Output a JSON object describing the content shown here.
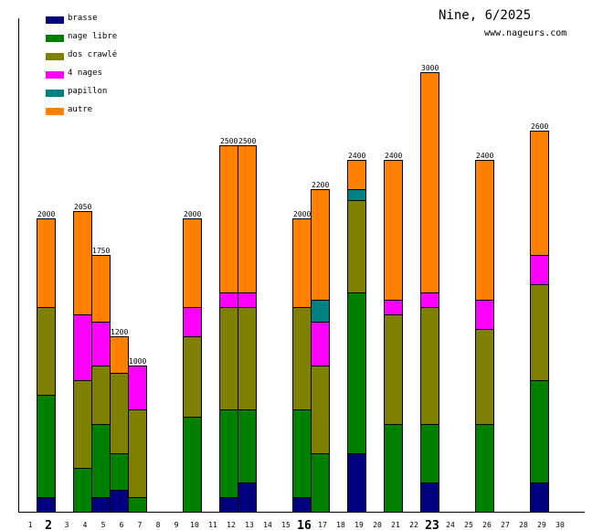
{
  "header": {
    "title": "Nine, 6/2025",
    "site": "www.nageurs.com"
  },
  "chart_data": {
    "type": "bar",
    "stacked": true,
    "title": "Nine, 6/2025",
    "subtitle": "www.nageurs.com",
    "xlabel": "",
    "ylabel": "",
    "ylim": [
      0,
      3000
    ],
    "grid": false,
    "legend_position": "top-left",
    "x_ticks": [
      "1",
      "2",
      "3",
      "4",
      "5",
      "6",
      "7",
      "8",
      "9",
      "10",
      "11",
      "12",
      "13",
      "14",
      "15",
      "16",
      "17",
      "18",
      "19",
      "20",
      "21",
      "22",
      "23",
      "24",
      "25",
      "26",
      "27",
      "28",
      "29",
      "30"
    ],
    "bold_ticks": [
      "2",
      "16",
      "23"
    ],
    "series": [
      {
        "name": "brasse",
        "color": "#000080"
      },
      {
        "name": "nage libre",
        "color": "#008000"
      },
      {
        "name": "dos crawlé",
        "color": "#808000"
      },
      {
        "name": "4 nages",
        "color": "#ff00ff"
      },
      {
        "name": "papillon",
        "color": "#008080"
      },
      {
        "name": "autre",
        "color": "#ff8000"
      }
    ],
    "days": [
      {
        "day": 2,
        "total": 2000,
        "values": {
          "brasse": 100,
          "nage libre": 700,
          "dos crawlé": 600,
          "4 nages": 0,
          "papillon": 0,
          "autre": 600
        }
      },
      {
        "day": 4,
        "total": 2050,
        "values": {
          "brasse": 0,
          "nage libre": 300,
          "dos crawlé": 600,
          "4 nages": 450,
          "papillon": 0,
          "autre": 700
        }
      },
      {
        "day": 5,
        "total": 1750,
        "values": {
          "brasse": 100,
          "nage libre": 500,
          "dos crawlé": 400,
          "4 nages": 300,
          "papillon": 0,
          "autre": 450
        }
      },
      {
        "day": 6,
        "total": 1200,
        "values": {
          "brasse": 150,
          "nage libre": 250,
          "dos crawlé": 550,
          "4 nages": 0,
          "papillon": 0,
          "autre": 250
        }
      },
      {
        "day": 7,
        "total": 1000,
        "values": {
          "brasse": 0,
          "nage libre": 100,
          "dos crawlé": 600,
          "4 nages": 300,
          "papillon": 0,
          "autre": 0
        }
      },
      {
        "day": 10,
        "total": 2000,
        "values": {
          "brasse": 0,
          "nage libre": 650,
          "dos crawlé": 550,
          "4 nages": 200,
          "papillon": 0,
          "autre": 600
        }
      },
      {
        "day": 12,
        "total": 2500,
        "values": {
          "brasse": 100,
          "nage libre": 600,
          "dos crawlé": 700,
          "4 nages": 100,
          "papillon": 0,
          "autre": 1000
        }
      },
      {
        "day": 13,
        "total": 2500,
        "values": {
          "brasse": 200,
          "nage libre": 500,
          "dos crawlé": 700,
          "4 nages": 100,
          "papillon": 0,
          "autre": 1000
        }
      },
      {
        "day": 16,
        "total": 2000,
        "values": {
          "brasse": 100,
          "nage libre": 600,
          "dos crawlé": 700,
          "4 nages": 0,
          "papillon": 0,
          "autre": 600
        }
      },
      {
        "day": 17,
        "total": 2200,
        "values": {
          "brasse": 0,
          "nage libre": 400,
          "dos crawlé": 600,
          "4 nages": 300,
          "papillon": 150,
          "autre": 750
        }
      },
      {
        "day": 19,
        "total": 2400,
        "values": {
          "brasse": 400,
          "nage libre": 1100,
          "dos crawlé": 625,
          "4 nages": 0,
          "papillon": 75,
          "autre": 200
        }
      },
      {
        "day": 21,
        "total": 2400,
        "values": {
          "brasse": 0,
          "nage libre": 600,
          "dos crawlé": 750,
          "4 nages": 100,
          "papillon": 0,
          "autre": 950
        }
      },
      {
        "day": 23,
        "total": 3000,
        "values": {
          "brasse": 200,
          "nage libre": 400,
          "dos crawlé": 800,
          "4 nages": 100,
          "papillon": 0,
          "autre": 1500
        }
      },
      {
        "day": 26,
        "total": 2400,
        "values": {
          "brasse": 0,
          "nage libre": 600,
          "dos crawlé": 650,
          "4 nages": 200,
          "papillon": 0,
          "autre": 950
        }
      },
      {
        "day": 29,
        "total": 2600,
        "values": {
          "brasse": 200,
          "nage libre": 700,
          "dos crawlé": 650,
          "4 nages": 200,
          "papillon": 0,
          "autre": 850
        }
      }
    ]
  }
}
